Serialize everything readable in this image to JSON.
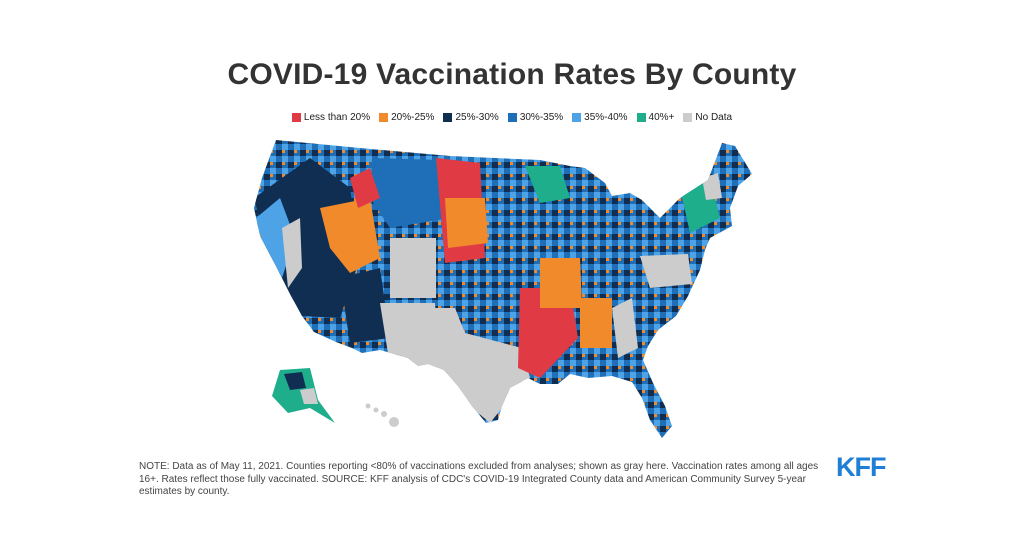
{
  "title": "COVID-19 Vaccination Rates By County",
  "legend": [
    {
      "label": "Less than 20%",
      "color": "#e03a44"
    },
    {
      "label": "20%-25%",
      "color": "#f08a2a"
    },
    {
      "label": "25%-30%",
      "color": "#0f2e52"
    },
    {
      "label": "30%-35%",
      "color": "#1f6fb8"
    },
    {
      "label": "35%-40%",
      "color": "#4da3e6"
    },
    {
      "label": "40%+",
      "color": "#1fae8c"
    },
    {
      "label": "No Data",
      "color": "#cccccc"
    }
  ],
  "note": "NOTE: Data as of May 11, 2021. Counties reporting <80% of vaccinations excluded from analyses; shown as gray here. Vaccination rates among all ages 16+. Rates reflect those fully vaccinated. SOURCE: KFF analysis of CDC's COVID-19 Integrated County data and American Community Survey 5-year estimates by county.",
  "logo": "KFF"
}
